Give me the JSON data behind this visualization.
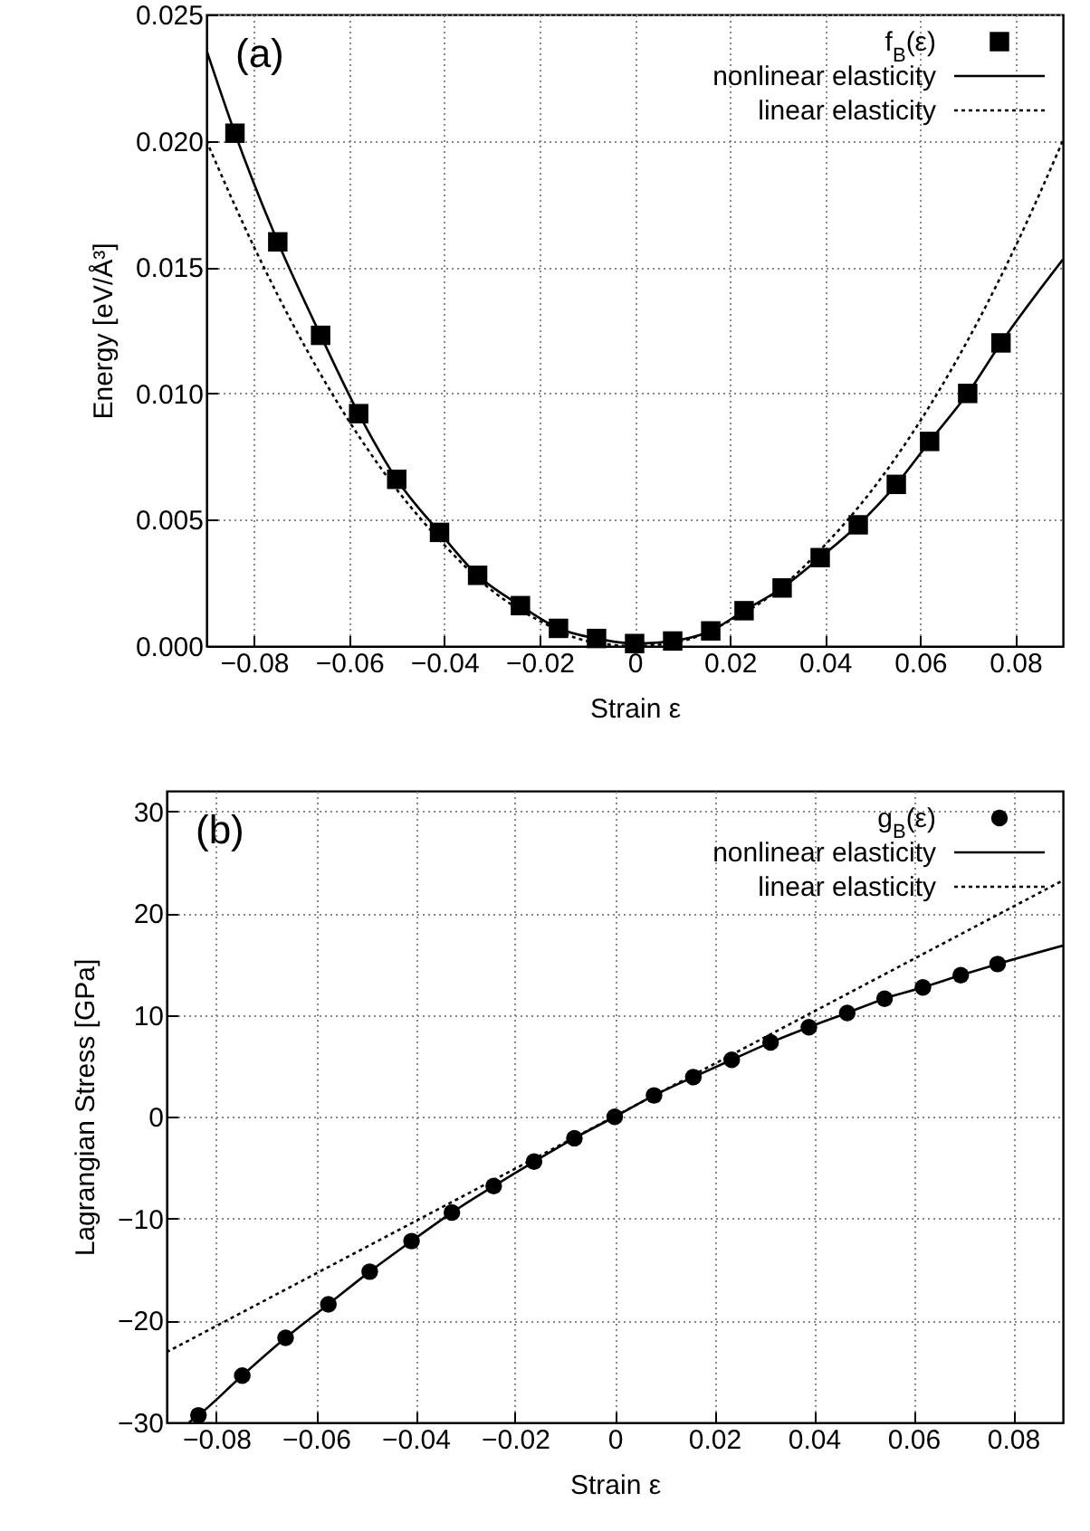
{
  "chart_data": [
    {
      "type": "scatter",
      "xlabel": "Strain ε",
      "ylabel": "Energy [eV/Å³]",
      "annotations": [
        "(a)"
      ],
      "xlim": [
        -0.09,
        0.09
      ],
      "ylim": [
        0,
        0.025
      ],
      "xticks": [
        {
          "value": -0.08,
          "label": "−0.08"
        },
        {
          "value": -0.06,
          "label": "−0.06"
        },
        {
          "value": -0.04,
          "label": "−0.04"
        },
        {
          "value": -0.02,
          "label": "−0.02"
        },
        0,
        0.02,
        0.04,
        0.06,
        0.08
      ],
      "yticks": [
        {
          "value": 0,
          "label": "0.000"
        },
        {
          "value": 0.005,
          "label": "0.005"
        },
        {
          "value": 0.01,
          "label": "0.010"
        },
        {
          "value": 0.015,
          "label": "0.015"
        },
        {
          "value": 0.02,
          "label": "0.020"
        },
        {
          "value": 0.025,
          "label": "0.025"
        }
      ],
      "grid": true,
      "legend": "top right",
      "series": [
        {
          "name": "f$_{B}$(ε)",
          "type": "scatter",
          "marker": "square",
          "color": "#000000",
          "x": [
            -0.084,
            -0.075,
            -0.066,
            -0.058,
            -0.05,
            -0.041,
            -0.033,
            -0.024,
            -0.016,
            -0.008,
            0,
            0.008,
            0.016,
            0.023,
            0.031,
            0.039,
            0.047,
            0.055,
            0.062,
            0.07,
            0.077
          ],
          "values": [
            0.0203,
            0.016,
            0.0123,
            0.0092,
            0.0066,
            0.0045,
            0.0028,
            0.0016,
            0.0007,
            0.0003,
            0.0001,
            0.0002,
            0.0006,
            0.0014,
            0.0023,
            0.0035,
            0.0048,
            0.0064,
            0.0081,
            0.01,
            0.012
          ]
        },
        {
          "name": "nonlinear elasticity",
          "type": "line",
          "line_style": "solid",
          "color": "#000000",
          "x": [
            -0.09,
            -0.084,
            -0.075,
            -0.066,
            -0.058,
            -0.05,
            -0.041,
            -0.033,
            -0.024,
            -0.016,
            -0.008,
            0,
            0.008,
            0.016,
            0.023,
            0.031,
            0.039,
            0.047,
            0.055,
            0.062,
            0.07,
            0.077,
            0.09
          ],
          "values": [
            0.0236,
            0.0203,
            0.016,
            0.0123,
            0.0092,
            0.0066,
            0.0045,
            0.0028,
            0.0016,
            0.0007,
            0.0003,
            0.0001,
            0.0002,
            0.0006,
            0.0014,
            0.0023,
            0.0035,
            0.0048,
            0.0064,
            0.0081,
            0.01,
            0.012,
            0.0153
          ]
        },
        {
          "name": "linear elasticity",
          "type": "line",
          "line_style": "dotted",
          "color": "#000000",
          "x": [
            -0.09,
            -0.08,
            -0.07,
            -0.06,
            -0.05,
            -0.04,
            -0.03,
            -0.02,
            -0.01,
            0,
            0.01,
            0.02,
            0.03,
            0.04,
            0.05,
            0.06,
            0.07,
            0.08,
            0.09
          ],
          "values": [
            0.02,
            0.0158,
            0.0121,
            0.0089,
            0.0062,
            0.004,
            0.0022,
            0.001,
            0.0002,
            0,
            0.0002,
            0.001,
            0.0022,
            0.004,
            0.0062,
            0.0089,
            0.0121,
            0.0158,
            0.02
          ]
        }
      ]
    },
    {
      "type": "scatter",
      "xlabel": "Strain ε",
      "ylabel": "Lagrangian Stress [GPa]",
      "annotations": [
        "(b)"
      ],
      "xlim": [
        -0.09,
        0.09
      ],
      "ylim": [
        -30,
        32
      ],
      "xticks": [
        {
          "value": -0.08,
          "label": "−0.08"
        },
        {
          "value": -0.06,
          "label": "−0.06"
        },
        {
          "value": -0.04,
          "label": "−0.04"
        },
        {
          "value": -0.02,
          "label": "−0.02"
        },
        0,
        0.02,
        0.04,
        0.06,
        0.08
      ],
      "yticks": [
        {
          "value": -30,
          "label": "−30"
        },
        {
          "value": -20,
          "label": "−20"
        },
        {
          "value": -10,
          "label": "−10"
        },
        0,
        10,
        20,
        30
      ],
      "grid": true,
      "legend": "top right",
      "series": [
        {
          "name": "g$_{B}$(ε)",
          "type": "scatter",
          "marker": "circle",
          "color": "#000000",
          "x": [
            -0.0836,
            -0.0748,
            -0.0661,
            -0.0575,
            -0.0492,
            -0.0408,
            -0.0327,
            -0.0243,
            -0.0162,
            -0.0081,
            0,
            0.0079,
            0.0158,
            0.0235,
            0.0313,
            0.039,
            0.0467,
            0.0542,
            0.0619,
            0.0695,
            0.0769
          ],
          "values": [
            -29.3,
            -25.4,
            -21.7,
            -18.4,
            -15.2,
            -12.2,
            -9.4,
            -6.8,
            -4.4,
            -2.1,
            0,
            2.1,
            3.9,
            5.6,
            7.3,
            8.8,
            10.2,
            11.6,
            12.7,
            13.9,
            15.0
          ]
        },
        {
          "name": "nonlinear elasticity",
          "type": "line",
          "line_style": "solid",
          "color": "#000000",
          "x": [
            -0.0855,
            -0.0836,
            -0.0748,
            -0.0661,
            -0.0575,
            -0.0492,
            -0.0408,
            -0.0327,
            -0.0243,
            -0.0162,
            -0.0081,
            0,
            0.0079,
            0.0158,
            0.0235,
            0.0313,
            0.039,
            0.0467,
            0.0542,
            0.0619,
            0.0695,
            0.0769,
            0.09
          ],
          "values": [
            -30,
            -29.3,
            -25.4,
            -21.7,
            -18.4,
            -15.2,
            -12.2,
            -9.4,
            -6.8,
            -4.4,
            -2.1,
            0,
            2.1,
            3.9,
            5.6,
            7.3,
            8.8,
            10.2,
            11.6,
            12.7,
            13.9,
            15.0,
            16.8
          ]
        },
        {
          "name": "linear elasticity",
          "type": "line",
          "line_style": "dotted",
          "color": "#000000",
          "x": [
            -0.09,
            0.09
          ],
          "values": [
            -23.1,
            23.2
          ]
        }
      ]
    }
  ]
}
